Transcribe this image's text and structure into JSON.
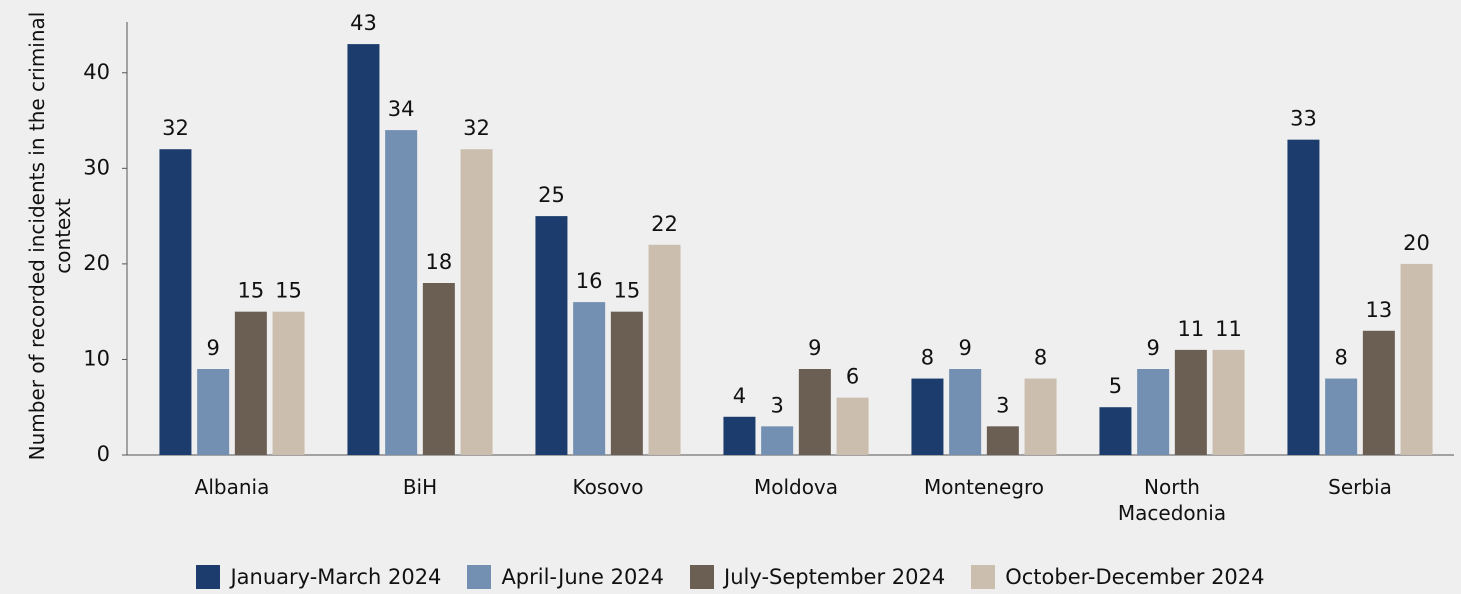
{
  "chart_data": {
    "type": "bar",
    "y_axis_label": "Number of recorded incidents in the criminal context",
    "categories": [
      "Albania",
      "BiH",
      "Kosovo",
      "Moldova",
      "Montenegro",
      "North Macedonia",
      "Serbia"
    ],
    "series": [
      {
        "name": "January-March 2024",
        "color": "#1b3c6c",
        "values": [
          32,
          43,
          25,
          4,
          8,
          5,
          33
        ]
      },
      {
        "name": "April-June 2024",
        "color": "#7390b2",
        "values": [
          9,
          34,
          16,
          3,
          9,
          9,
          8
        ]
      },
      {
        "name": "July-September 2024",
        "color": "#6b5f53",
        "values": [
          15,
          18,
          15,
          9,
          3,
          11,
          13
        ]
      },
      {
        "name": "October-December 2024",
        "color": "#cbbeae",
        "values": [
          15,
          32,
          22,
          6,
          8,
          11,
          20
        ]
      }
    ],
    "ylim": [
      0,
      45
    ],
    "yticks": [
      0,
      10,
      20,
      30,
      40
    ],
    "grid": false,
    "legend": "bottom"
  }
}
